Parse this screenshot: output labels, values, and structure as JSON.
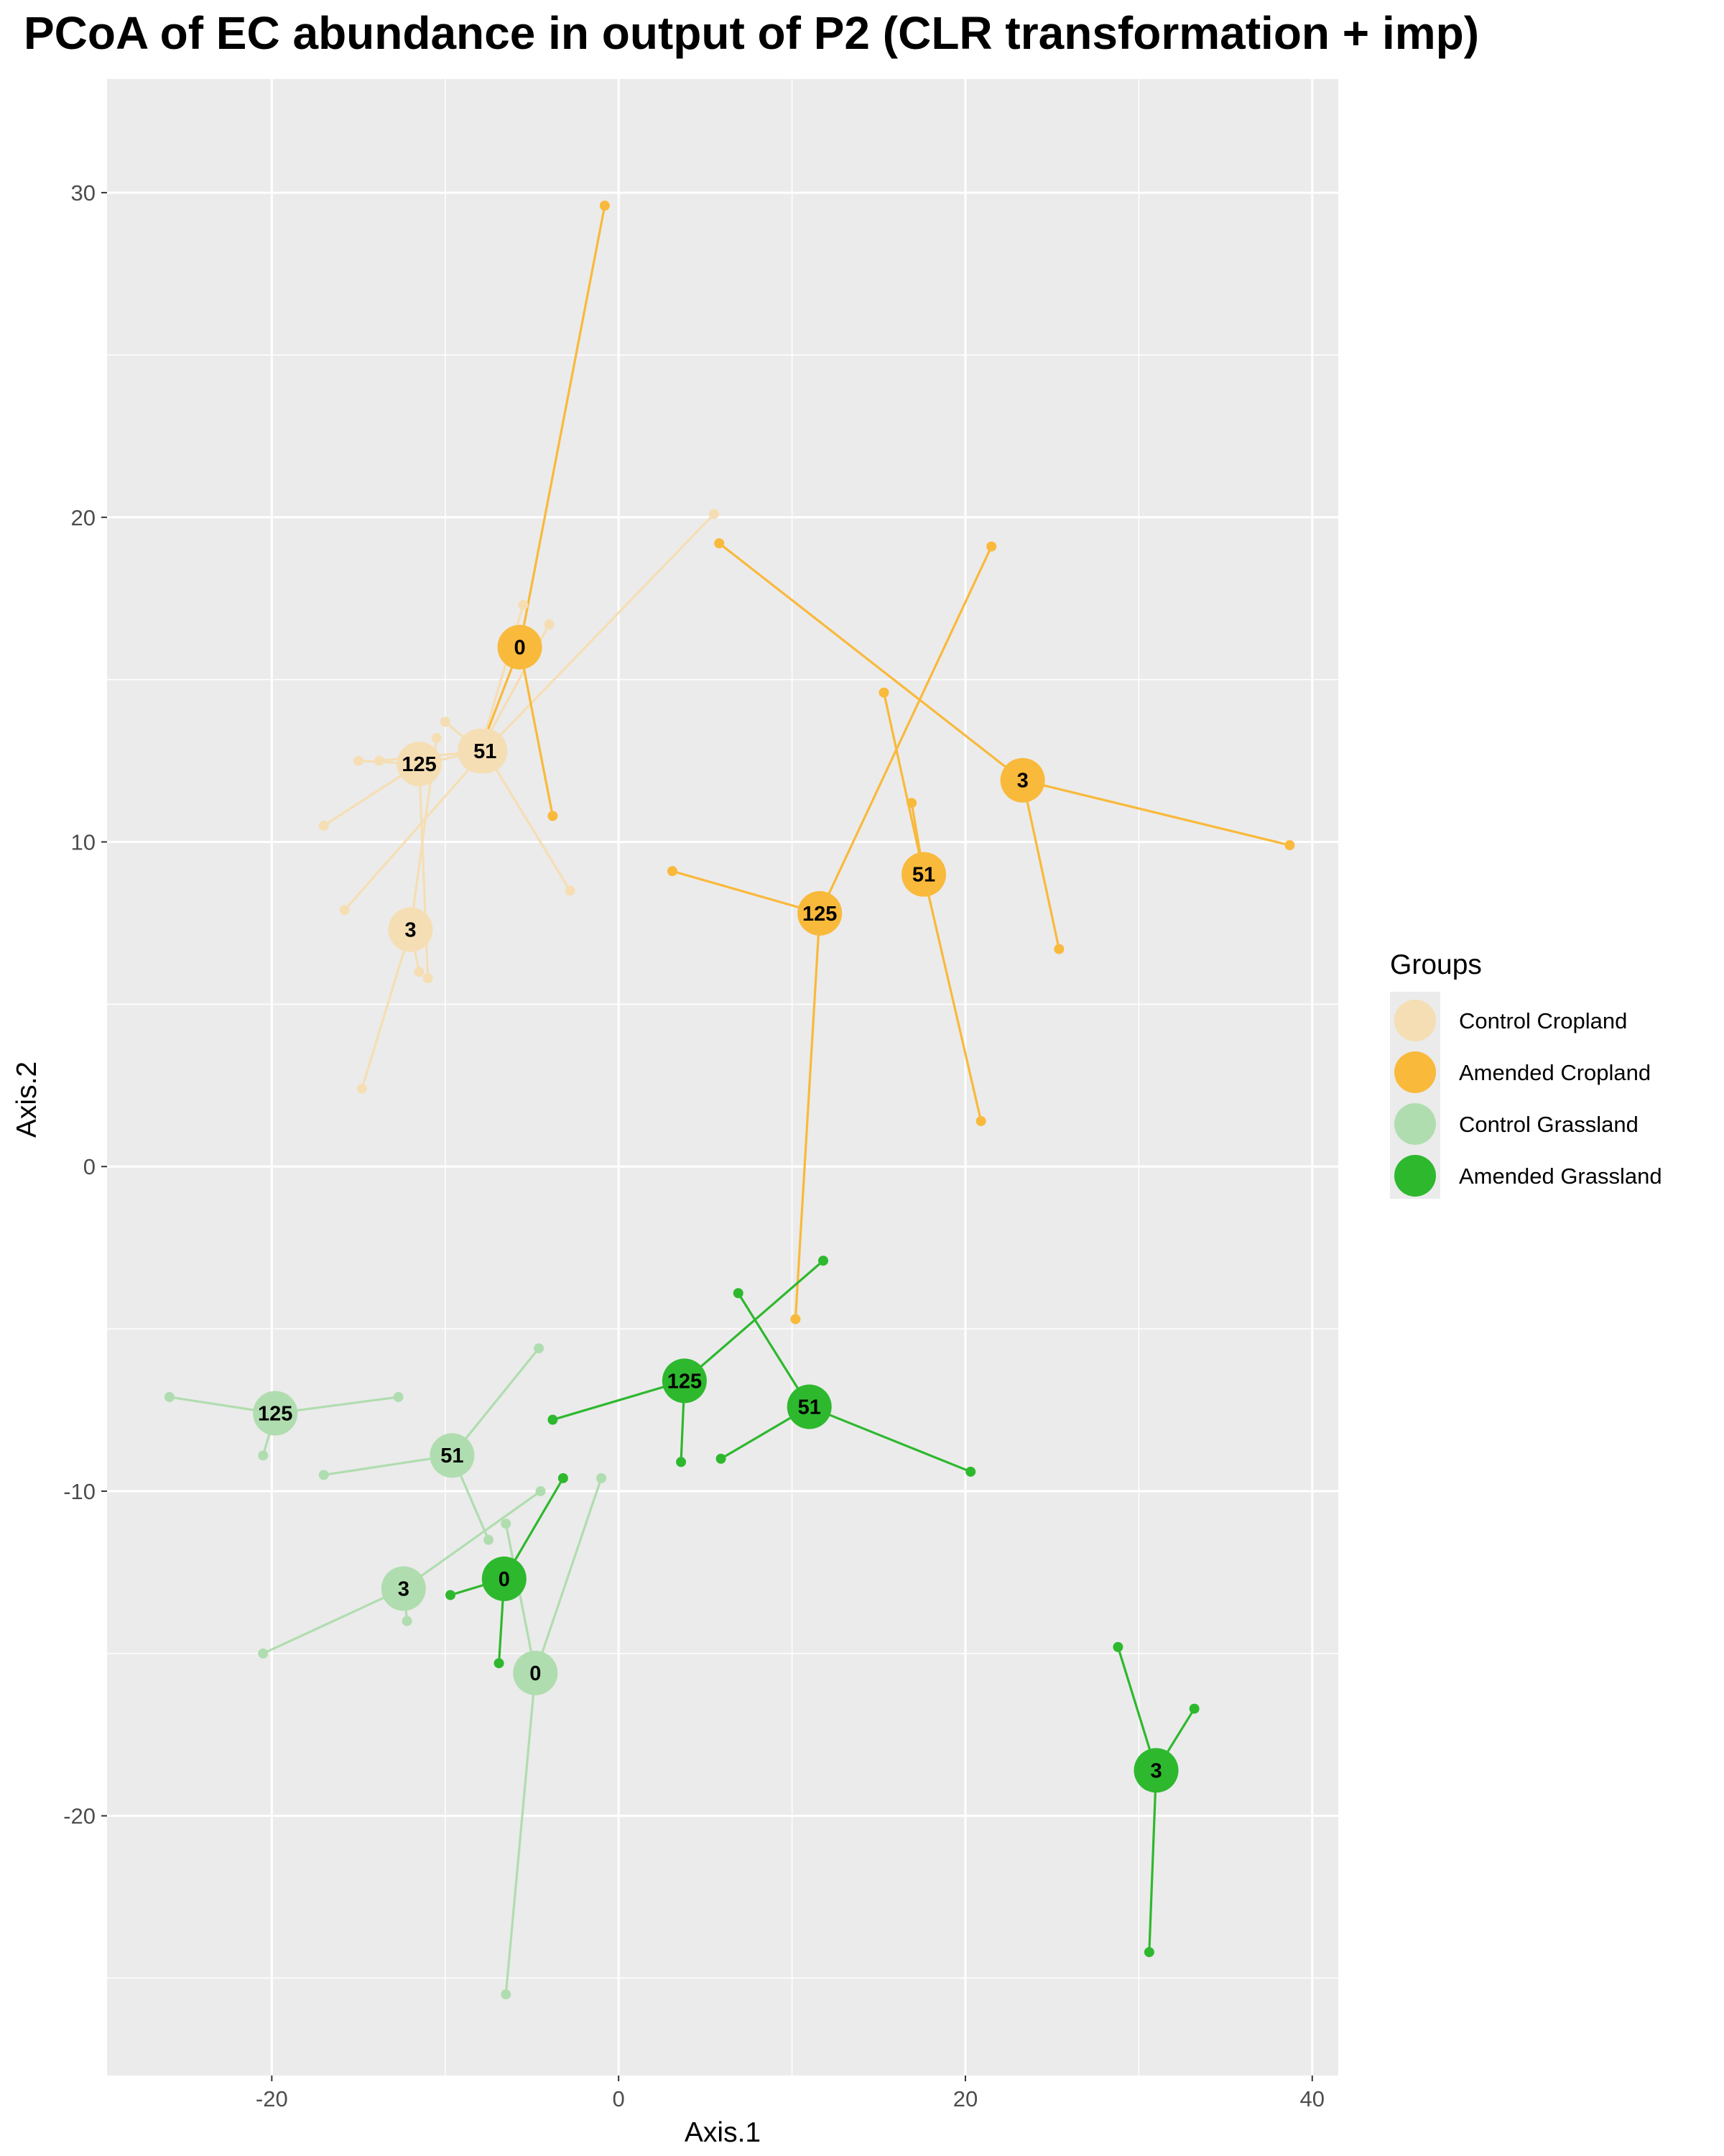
{
  "chart_data": {
    "type": "scatter",
    "title": "PCoA of EC abundance in output of P2 (CLR transformation + imp)",
    "xlabel": "Axis.1",
    "ylabel": "Axis.2",
    "xlim": [
      -29.5,
      41.5
    ],
    "ylim": [
      -28,
      33.5
    ],
    "xticks": [
      -20,
      0,
      20,
      40
    ],
    "yticks": [
      -20,
      -10,
      0,
      10,
      20,
      30
    ],
    "grid": true,
    "legend": {
      "title": "Groups",
      "position": "right",
      "entries": [
        "Control Cropland",
        "Amended Cropland",
        "Control Grassland",
        "Amended Grassland"
      ]
    },
    "series": [
      {
        "name": "Control Cropland",
        "color": "#F5DEB3",
        "centroids": [
          {
            "label": "0",
            "x": -8.0,
            "y": 12.8,
            "samples": [
              [
                -10.0,
                13.7
              ],
              [
                -4.0,
                16.7
              ],
              [
                -5.5,
                17.3
              ],
              [
                -10.5,
                12.5
              ]
            ]
          },
          {
            "label": "51",
            "x": -7.7,
            "y": 12.8,
            "samples": [
              [
                5.5,
                20.1
              ],
              [
                -2.8,
                8.5
              ],
              [
                -13.8,
                12.5
              ],
              [
                -15.8,
                7.9
              ]
            ]
          },
          {
            "label": "125",
            "x": -11.5,
            "y": 12.4,
            "samples": [
              [
                -15.0,
                12.5
              ],
              [
                -17.0,
                10.5
              ],
              [
                -11.0,
                5.8
              ],
              [
                -12.5,
                12.3
              ]
            ]
          },
          {
            "label": "3",
            "x": -12.0,
            "y": 7.3,
            "samples": [
              [
                -14.8,
                2.4
              ],
              [
                -10.5,
                13.2
              ],
              [
                -11.5,
                6.0
              ]
            ]
          }
        ]
      },
      {
        "name": "Amended Cropland",
        "color": "#F9B93B",
        "centroids": [
          {
            "label": "0",
            "x": -5.7,
            "y": 16.0,
            "samples": [
              [
                -0.8,
                29.6
              ],
              [
                -3.8,
                10.8
              ],
              [
                -8.0,
                12.8
              ]
            ]
          },
          {
            "label": "125",
            "x": 11.6,
            "y": 7.8,
            "samples": [
              [
                3.1,
                9.1
              ],
              [
                21.5,
                19.1
              ],
              [
                10.2,
                -4.7
              ]
            ]
          },
          {
            "label": "51",
            "x": 17.6,
            "y": 9.0,
            "samples": [
              [
                15.3,
                14.6
              ],
              [
                16.9,
                11.2
              ],
              [
                20.9,
                1.4
              ]
            ]
          },
          {
            "label": "3",
            "x": 23.3,
            "y": 11.9,
            "samples": [
              [
                5.8,
                19.2
              ],
              [
                38.7,
                9.9
              ],
              [
                25.4,
                6.7
              ]
            ]
          }
        ]
      },
      {
        "name": "Control Grassland",
        "color": "#B0DDAF",
        "centroids": [
          {
            "label": "125",
            "x": -19.8,
            "y": -7.6,
            "samples": [
              [
                -25.9,
                -7.1
              ],
              [
                -12.7,
                -7.1
              ],
              [
                -20.5,
                -8.9
              ]
            ]
          },
          {
            "label": "51",
            "x": -9.6,
            "y": -8.9,
            "samples": [
              [
                -4.6,
                -5.6
              ],
              [
                -17.0,
                -9.5
              ],
              [
                -7.5,
                -11.5
              ]
            ]
          },
          {
            "label": "3",
            "x": -12.4,
            "y": -13.0,
            "samples": [
              [
                -20.5,
                -15.0
              ],
              [
                -4.5,
                -10.0
              ],
              [
                -12.2,
                -14.0
              ]
            ]
          },
          {
            "label": "0",
            "x": -4.8,
            "y": -15.6,
            "samples": [
              [
                -1.0,
                -9.6
              ],
              [
                -6.5,
                -25.5
              ],
              [
                -6.5,
                -11.0
              ]
            ]
          }
        ]
      },
      {
        "name": "Amended Grassland",
        "color": "#2EB82E",
        "centroids": [
          {
            "label": "125",
            "x": 3.8,
            "y": -6.6,
            "samples": [
              [
                -3.8,
                -7.8
              ],
              [
                11.8,
                -2.9
              ],
              [
                3.6,
                -9.1
              ]
            ]
          },
          {
            "label": "51",
            "x": 11.0,
            "y": -7.4,
            "samples": [
              [
                6.9,
                -3.9
              ],
              [
                20.3,
                -9.4
              ],
              [
                5.9,
                -9.0
              ]
            ]
          },
          {
            "label": "0",
            "x": -6.6,
            "y": -12.7,
            "samples": [
              [
                -3.2,
                -9.6
              ],
              [
                -9.7,
                -13.2
              ],
              [
                -6.9,
                -15.3
              ]
            ]
          },
          {
            "label": "3",
            "x": 31.0,
            "y": -18.6,
            "samples": [
              [
                28.8,
                -14.8
              ],
              [
                33.2,
                -16.7
              ],
              [
                30.6,
                -24.2
              ]
            ]
          }
        ]
      }
    ]
  }
}
